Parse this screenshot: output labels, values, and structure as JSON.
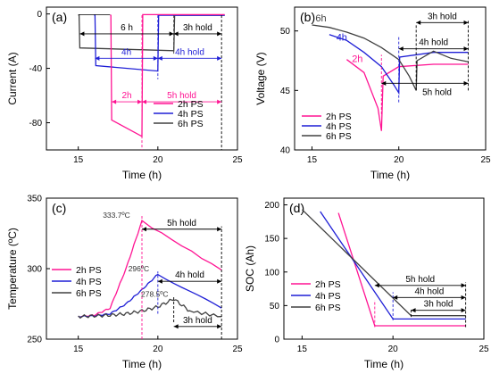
{
  "colors": {
    "2h": "#ff1493",
    "4h": "#1f1fd6",
    "6h": "#404040",
    "axis": "#000000"
  },
  "chart_data": [
    {
      "panel": "(a)",
      "type": "line",
      "xlabel": "Time (h)",
      "ylabel": "Current (A)",
      "xlim": [
        13,
        25
      ],
      "ylim": [
        -100,
        5
      ],
      "xticks": [
        "15",
        "20",
        "25"
      ],
      "yticks": [
        "0",
        "-40",
        "-80"
      ],
      "series": [
        {
          "name": "2h PS",
          "x": [
            15,
            19,
            19.2,
            19.2,
            24
          ],
          "y": [
            -2,
            -2,
            -2,
            -0.5,
            -0.5
          ],
          "extra": {
            "x": [
              19,
              17,
              17,
              19,
              19
            ],
            "y": [
              -2,
              -2,
              -78,
              -90,
              -2
            ]
          }
        },
        {
          "name": "4h PS",
          "x": [
            16,
            16.05,
            20,
            20.05,
            24
          ],
          "y": [
            -2,
            -38,
            -42,
            -1,
            -1
          ]
        },
        {
          "name": "6h PS",
          "x": [
            15,
            15.1,
            21,
            21.05,
            24
          ],
          "y": [
            -2,
            -25,
            -27,
            -1,
            -1
          ]
        }
      ],
      "annotations": [
        "6 h",
        "4h",
        "2h",
        "3h hold",
        "4h hold",
        "5h hold"
      ],
      "legend": [
        "2h PS",
        "4h PS",
        "6h PS"
      ],
      "legend_position": "bottom-right"
    },
    {
      "panel": "(b)",
      "type": "line",
      "xlabel": "Time (h)",
      "ylabel": "Voltage (V)",
      "xlim": [
        14,
        25
      ],
      "ylim": [
        40,
        52
      ],
      "xticks": [
        "15",
        "20",
        "25"
      ],
      "yticks": [
        "40",
        "45",
        "50"
      ],
      "series": [
        {
          "name": "2h PS",
          "x": [
            17,
            18,
            18.8,
            19,
            19.1,
            20,
            22,
            24
          ],
          "y": [
            47.6,
            46.5,
            43.5,
            41.6,
            46.2,
            47,
            47.2,
            47.2
          ]
        },
        {
          "name": "4h PS",
          "x": [
            16,
            17,
            18,
            19,
            19.7,
            20,
            20.05,
            22,
            24
          ],
          "y": [
            49.7,
            49.2,
            48.2,
            47,
            45.5,
            44.8,
            47.8,
            48.2,
            48.2
          ]
        },
        {
          "name": "6h PS",
          "x": [
            15,
            16,
            17,
            18,
            19,
            20,
            20.6,
            21,
            21.05,
            22,
            23,
            24
          ],
          "y": [
            50.5,
            50.3,
            49.9,
            49.4,
            48.6,
            47.6,
            46.2,
            45,
            47.5,
            48.3,
            47.7,
            47.4
          ]
        }
      ],
      "annotations": [
        "6h",
        "4h",
        "2h",
        "3h hold",
        "4h hold",
        "5h hold"
      ],
      "legend": [
        "2h PS",
        "4h PS",
        "6h PS"
      ],
      "legend_position": "bottom-left"
    },
    {
      "panel": "(c)",
      "type": "line",
      "xlabel": "Time (h)",
      "ylabel": "Temperature (ºC)",
      "xlim": [
        13,
        25
      ],
      "ylim": [
        250,
        350
      ],
      "xticks": [
        "15",
        "20",
        "25"
      ],
      "yticks": [
        "250",
        "300",
        "350"
      ],
      "series": [
        {
          "name": "2h PS",
          "x": [
            15,
            16,
            17,
            18,
            19,
            24
          ],
          "y": [
            266,
            267,
            272,
            300,
            333.7,
            299
          ]
        },
        {
          "name": "4h PS",
          "x": [
            15,
            16,
            17,
            18,
            19,
            20,
            24
          ],
          "y": [
            266,
            266.5,
            268,
            275,
            285,
            296,
            272
          ]
        },
        {
          "name": "6h PS",
          "x": [
            15,
            16,
            17,
            18,
            19,
            20,
            21,
            22,
            24
          ],
          "y": [
            266,
            266.5,
            267,
            268,
            270,
            273,
            278.5,
            270,
            266
          ]
        }
      ],
      "annotations": [
        "333.7ºC",
        "296ºC",
        "278.5ºC",
        "5h hold",
        "4h hold",
        "3h hold"
      ],
      "legend": [
        "2h PS",
        "4h PS",
        "6h PS"
      ],
      "legend_position": "left"
    },
    {
      "panel": "(d)",
      "type": "line",
      "xlabel": "Time (h)",
      "ylabel": "SOC (Ah)",
      "xlim": [
        14,
        25
      ],
      "ylim": [
        0,
        210
      ],
      "xticks": [
        "15",
        "20",
        "25"
      ],
      "yticks": [
        "0",
        "50",
        "100",
        "150",
        "200"
      ],
      "series": [
        {
          "name": "2h PS",
          "x": [
            17,
            19,
            24
          ],
          "y": [
            188,
            20,
            20
          ]
        },
        {
          "name": "4h PS",
          "x": [
            16,
            20,
            24
          ],
          "y": [
            190,
            30,
            30
          ]
        },
        {
          "name": "6h PS",
          "x": [
            15,
            21,
            24
          ],
          "y": [
            193,
            35,
            35
          ]
        }
      ],
      "annotations": [
        "5h hold",
        "4h hold",
        "3h hold"
      ],
      "legend": [
        "2h PS",
        "4h PS",
        "6h PS"
      ],
      "legend_position": "left"
    }
  ]
}
